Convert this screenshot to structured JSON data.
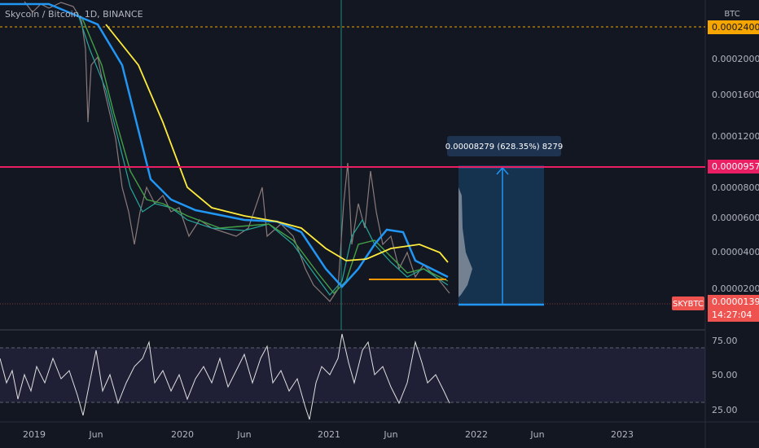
{
  "header": {
    "title": "Skycoin / Bitcoin, 1D, BINANCE",
    "currency": "BTC"
  },
  "price_axis": {
    "labels": [
      "0.00020000",
      "0.00016000",
      "0.00012000",
      "0.00008000",
      "0.00006000",
      "0.00004000",
      "0.00002000"
    ]
  },
  "tags": {
    "upper_level": "0.00024000",
    "target_level": "0.00009570",
    "symbol": "SKYBTC",
    "last_price": "0.00001393",
    "countdown": "14:27:04"
  },
  "measure": {
    "label": "0.00008279 (628.35%) 8279"
  },
  "rsi_axis": {
    "labels": [
      "75.00",
      "50.00",
      "25.00"
    ]
  },
  "time_axis": {
    "labels": [
      "2019",
      "Jun",
      "2020",
      "Jun",
      "2021",
      "Jun",
      "2022",
      "Jun",
      "2023"
    ]
  }
}
